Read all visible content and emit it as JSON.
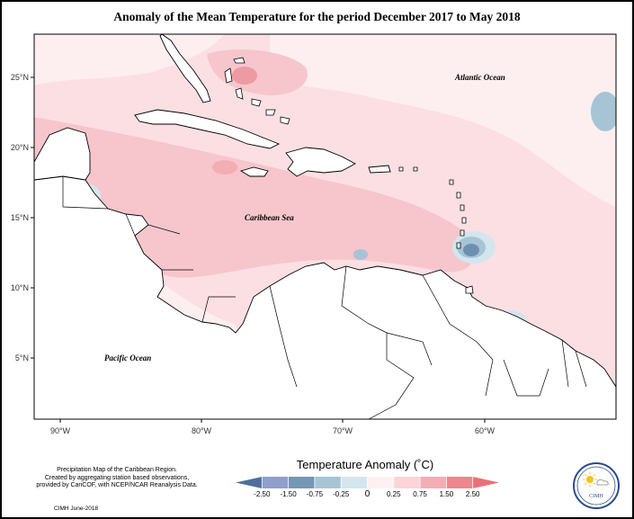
{
  "title": "Anomaly of the Mean Temperature for the period December 2017 to May 2018",
  "map": {
    "lon_ticks": [
      "90°W",
      "80°W",
      "70°W",
      "60°W"
    ],
    "lat_ticks": [
      "25°N",
      "20°N",
      "15°N",
      "10°N",
      "5°N"
    ],
    "labels": {
      "atlantic": "Atlantic Ocean",
      "caribbean": "Caribbean Sea",
      "pacific": "Pacific Ocean"
    }
  },
  "legend": {
    "title": "Temperature Anomaly (˚C)",
    "ticks": [
      "-2.50",
      "-1.50",
      "-0.75",
      "-0.25",
      "0",
      "0.25",
      "0.75",
      "1.50",
      "2.50"
    ],
    "colors": [
      "#4f6f9b",
      "#8f9ecb",
      "#7497b5",
      "#a6c4d6",
      "#d3e6ee",
      "#fff1f1",
      "#fcd3d7",
      "#f2aeb4",
      "#ee8690",
      "#ea7076"
    ]
  },
  "caption": {
    "line1": "Precipitation Map of the Caribbean Region.",
    "line2": "Created by aggregating station based observations,",
    "line3": "provided by CariCOF, with NCEP/NCAR Reanalysis Data.",
    "credit": "CIMH June-2018"
  },
  "logo": {
    "text": "CIMH",
    "icon": "sun-cloud-icon"
  }
}
